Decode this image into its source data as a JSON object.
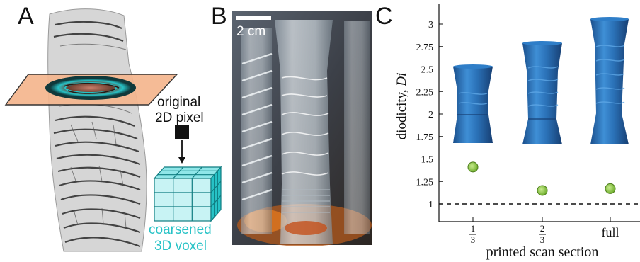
{
  "panels": {
    "a": {
      "letter": "A",
      "pixel_label_line1": "original",
      "pixel_label_line2": "2D pixel",
      "voxel_label_line1": "coarsened",
      "voxel_label_line2": "3D voxel",
      "colors": {
        "teal": "#27c2c6",
        "plane": "#f5b68e",
        "pixel": "#111111"
      }
    },
    "b": {
      "letter": "B",
      "scale_bar_label": "2 cm"
    },
    "c": {
      "letter": "C"
    }
  },
  "chart_data": {
    "type": "scatter",
    "ylabel_text": "diodicity, ",
    "ylabel_symbol": "Di",
    "xlabel": "printed scan section",
    "categories": [
      {
        "num": "1",
        "den": "3"
      },
      {
        "num": "2",
        "den": "3"
      },
      {
        "full": "full"
      }
    ],
    "values": [
      1.41,
      1.15,
      1.17
    ],
    "error": [
      0.05,
      0.05,
      0.05
    ],
    "ylim": [
      0.75,
      3.25
    ],
    "yticks": [
      "1",
      "1.25",
      "1.5",
      "1.75",
      "2",
      "2.25",
      "2.5",
      "2.75",
      "3"
    ],
    "reference_line": 1,
    "grid": false,
    "marker_color": "#8cc63e",
    "inset_color": "#2b72b8"
  }
}
